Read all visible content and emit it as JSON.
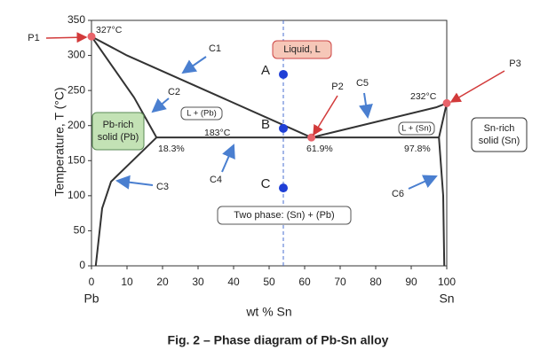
{
  "chart_data": {
    "type": "phase",
    "caption": "Fig. 2 – Phase diagram of Pb-Sn alloy",
    "x_label": "wt % Sn",
    "y_label": "Temperature, T (°C)",
    "x_end_labels": [
      "Pb",
      "Sn"
    ],
    "xlim": [
      0,
      100
    ],
    "ylim": [
      0,
      350
    ],
    "xticks": [
      0,
      10,
      20,
      30,
      40,
      50,
      60,
      70,
      80,
      90,
      100
    ],
    "yticks": [
      0,
      50,
      100,
      150,
      200,
      250,
      300,
      350
    ],
    "grid": false,
    "line_color": "#333333",
    "key_point_color": "#e8636a",
    "boundaries": [
      {
        "x": [
          0,
          10,
          61.9
        ],
        "y": [
          327,
          300,
          183
        ]
      },
      {
        "x": [
          61.9,
          97,
          100
        ],
        "y": [
          183,
          226,
          232
        ]
      },
      {
        "x": [
          0,
          12,
          18.3
        ],
        "y": [
          327,
          240,
          183
        ]
      },
      {
        "x": [
          18.3,
          97.8
        ],
        "y": [
          183,
          183
        ]
      },
      {
        "x": [
          18.3,
          12,
          5.5,
          3,
          1.2
        ],
        "y": [
          183,
          152,
          120,
          82,
          0
        ]
      },
      {
        "x": [
          100,
          97.8
        ],
        "y": [
          232,
          183
        ]
      },
      {
        "x": [
          97.8,
          99,
          99.3
        ],
        "y": [
          183,
          100,
          0
        ]
      }
    ],
    "points": [
      {
        "label": "A",
        "x": 54,
        "y": 273,
        "color": "#1f3fd6"
      },
      {
        "label": "B",
        "x": 54,
        "y": 196,
        "color": "#1f3fd6"
      },
      {
        "label": "C",
        "x": 54,
        "y": 111,
        "color": "#1f3fd6"
      }
    ],
    "annotations": [
      "327°C",
      "232°C",
      "183°C",
      "18.3%",
      "61.9%",
      "97.8%"
    ],
    "regions": [
      [
        "Liquid, L"
      ],
      [
        "L + (Pb)"
      ],
      [
        "L + (Sn)"
      ],
      [
        "Pb-rich",
        "solid (Pb)"
      ],
      [
        "Sn-rich",
        "solid (Sn)"
      ],
      [
        "Two phase: (Sn) + (Pb)"
      ]
    ],
    "callouts": [
      "P1",
      "P2",
      "P3",
      "C1",
      "C2",
      "C3",
      "C4",
      "C5",
      "C6"
    ]
  }
}
